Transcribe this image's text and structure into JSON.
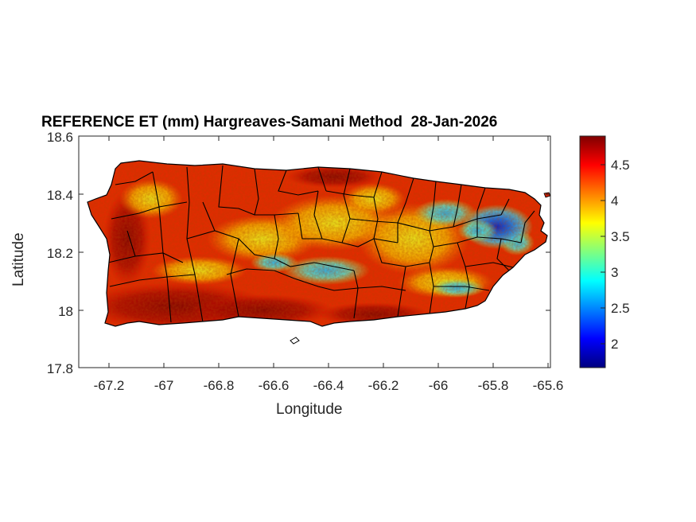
{
  "title": "REFERENCE ET (mm) Hargreaves-Samani Method  28-Jan-2026",
  "xlabel": "Longitude",
  "ylabel": "Latitude",
  "x_ticks": [
    "-67.2",
    "-67",
    "-66.8",
    "-66.6",
    "-66.4",
    "-66.2",
    "-66",
    "-65.8",
    "-65.6"
  ],
  "y_ticks": [
    "18.6",
    "18.4",
    "18.2",
    "18",
    "17.8"
  ],
  "colorbar": {
    "ticks": [
      "4.5",
      "4",
      "3.5",
      "3",
      "2.5",
      "2"
    ],
    "range": [
      1.7,
      4.9
    ],
    "colormap": "jet"
  },
  "chart_data": {
    "type": "heatmap",
    "title": "REFERENCE ET (mm) Hargreaves-Samani Method  28-Jan-2026",
    "xlabel": "Longitude",
    "ylabel": "Latitude",
    "xlim": [
      -67.3,
      -65.58
    ],
    "ylim": [
      17.8,
      18.6
    ],
    "color_range": [
      1.7,
      4.9
    ],
    "region": "Puerto Rico municipalities",
    "low_zones": [
      {
        "lon": -65.8,
        "lat": 18.28,
        "value": 2.0
      },
      {
        "lon": -66.45,
        "lat": 18.14,
        "value": 2.9
      },
      {
        "lon": -66.6,
        "lat": 18.16,
        "value": 3.0
      },
      {
        "lon": -65.95,
        "lat": 18.07,
        "value": 3.2
      }
    ],
    "high_zones": [
      {
        "lon": -67.0,
        "lat": 18.0,
        "value": 4.9
      },
      {
        "lon": -66.9,
        "lat": 18.45,
        "value": 4.6
      }
    ]
  }
}
